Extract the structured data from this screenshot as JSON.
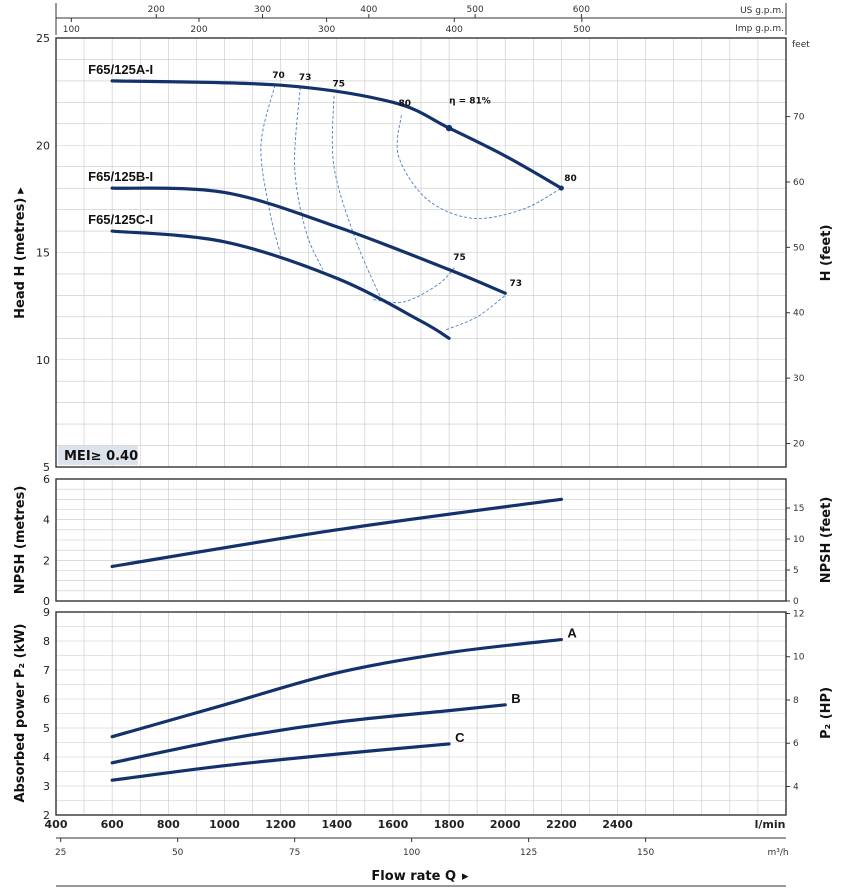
{
  "colors": {
    "curve": "#13326b",
    "dashed": "#4a7fc4",
    "grid": "#c8c8c8"
  },
  "chart_data": [
    {
      "type": "line",
      "panel": "head",
      "ylabel": "Head H  (metres)",
      "ylabel_right": "H  (feet)",
      "ylim": [
        5,
        25
      ],
      "yticks": [
        5,
        10,
        15,
        20,
        25
      ],
      "right_unit": "feet",
      "right_ticks": [
        20,
        30,
        40,
        50,
        60,
        70
      ],
      "badge": "MEI≥ 0.40",
      "series": [
        {
          "name": "F65/125A-I",
          "x": [
            600,
            1200,
            1600,
            1800,
            2000,
            2200
          ],
          "y": [
            23.0,
            22.8,
            22.0,
            20.8,
            19.5,
            18.0
          ]
        },
        {
          "name": "F65/125B-I",
          "x": [
            600,
            1000,
            1400,
            1800,
            2000
          ],
          "y": [
            18.0,
            17.8,
            16.2,
            14.2,
            13.1
          ]
        },
        {
          "name": "F65/125C-I",
          "x": [
            600,
            1000,
            1400,
            1700,
            1800
          ],
          "y": [
            16.0,
            15.5,
            13.8,
            11.8,
            11.0
          ]
        }
      ],
      "efficiency_labels": [
        "70",
        "73",
        "75",
        "80",
        "η = 81%",
        "80",
        "75",
        "73"
      ]
    },
    {
      "type": "line",
      "panel": "npsh",
      "ylabel": "NPSH  (metres)",
      "ylabel_right": "NPSH  (feet)",
      "ylim": [
        0,
        6
      ],
      "yticks": [
        0,
        2,
        4,
        6
      ],
      "right_ticks": [
        0,
        5,
        10,
        15
      ],
      "series": [
        {
          "name": "",
          "x": [
            600,
            1400,
            2200
          ],
          "y": [
            1.7,
            3.5,
            5.0
          ]
        }
      ]
    },
    {
      "type": "line",
      "panel": "power",
      "ylabel": "Absorbed power  P₂  (kW)",
      "ylabel_right": "P₂  (HP)",
      "ylim": [
        2,
        9
      ],
      "yticks": [
        2,
        3,
        4,
        5,
        6,
        7,
        8,
        9
      ],
      "right_ticks": [
        4,
        6,
        8,
        10,
        12
      ],
      "series": [
        {
          "name": "A",
          "x": [
            600,
            1000,
            1400,
            1800,
            2200
          ],
          "y": [
            4.7,
            5.8,
            6.9,
            7.6,
            8.05
          ]
        },
        {
          "name": "B",
          "x": [
            600,
            1000,
            1400,
            1800,
            2000
          ],
          "y": [
            3.8,
            4.6,
            5.2,
            5.6,
            5.8
          ]
        },
        {
          "name": "C",
          "x": [
            600,
            1000,
            1400,
            1800
          ],
          "y": [
            3.2,
            3.7,
            4.1,
            4.45
          ]
        }
      ]
    }
  ],
  "axes": {
    "x_lmin_ticks": [
      400,
      600,
      800,
      1000,
      1200,
      1400,
      1600,
      1800,
      2000,
      2200,
      2400
    ],
    "x_lmin_unit": "l/min",
    "x_m3h_ticks": [
      25,
      50,
      75,
      100,
      125,
      150
    ],
    "x_m3h_unit": "m³/h",
    "us_gpm_ticks": [
      200,
      300,
      400,
      500,
      600
    ],
    "us_gpm_unit": "US g.p.m.",
    "imp_gpm_ticks": [
      100,
      200,
      300,
      400,
      500
    ],
    "imp_gpm_unit": "Imp g.p.m.",
    "xlabel": "Flow rate Q"
  }
}
